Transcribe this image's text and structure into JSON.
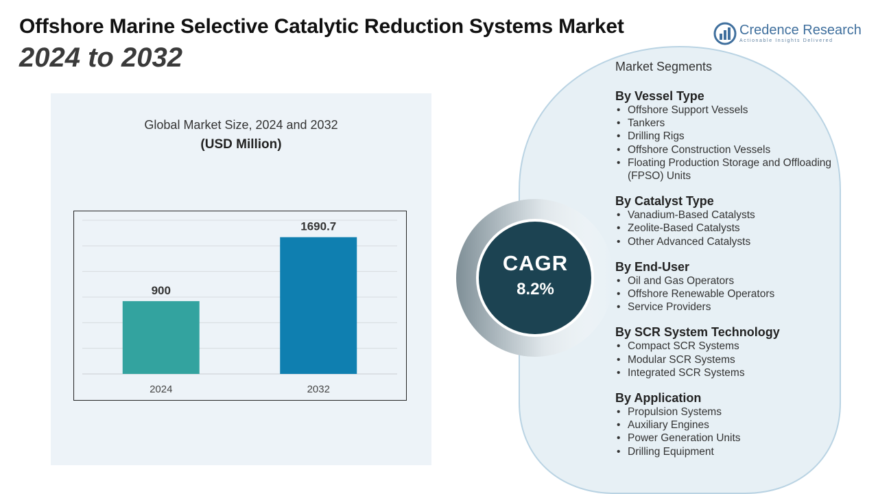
{
  "header": {
    "title_line1": "Offshore Marine Selective Catalytic Reduction Systems Market",
    "title_line2": "2024 to 2032"
  },
  "logo": {
    "name": "Credence Research",
    "tagline": "Actionable Insights Delivered",
    "icon": "bar-chart-logo-icon"
  },
  "chart_panel": {
    "title": "Global Market Size, 2024 and 2032",
    "unit": "(USD Million)"
  },
  "chart_data": {
    "type": "bar",
    "title": "Global Market Size, 2024 and 2032",
    "ylabel": "(USD Million)",
    "xlabel": "",
    "categories": [
      "2024",
      "2032"
    ],
    "values": [
      900,
      1690.7
    ],
    "value_labels": [
      "900",
      "1690.7"
    ],
    "colors": [
      "#33a39f",
      "#0f7fb0"
    ],
    "ylim": [
      0,
      1900
    ],
    "grid": true
  },
  "cagr": {
    "label": "CAGR",
    "value": "8.2%"
  },
  "segments": {
    "heading": "Market Segments",
    "groups": [
      {
        "title": "By Vessel Type",
        "items": [
          "Offshore Support Vessels",
          "Tankers",
          "Drilling Rigs",
          "Offshore Construction Vessels",
          "Floating Production Storage and Offloading (FPSO) Units"
        ]
      },
      {
        "title": "By Catalyst Type",
        "items": [
          "Vanadium-Based Catalysts",
          "Zeolite-Based Catalysts",
          "Other Advanced Catalysts"
        ]
      },
      {
        "title": "By End-User",
        "items": [
          "Oil and Gas Operators",
          "Offshore Renewable Operators",
          "Service Providers"
        ]
      },
      {
        "title": "By SCR System Technology",
        "items": [
          "Compact SCR Systems",
          "Modular SCR Systems",
          "Integrated SCR Systems"
        ]
      },
      {
        "title": "By Application",
        "items": [
          "Propulsion Systems",
          "Auxiliary Engines",
          "Power Generation Units",
          "Drilling Equipment"
        ]
      }
    ]
  }
}
